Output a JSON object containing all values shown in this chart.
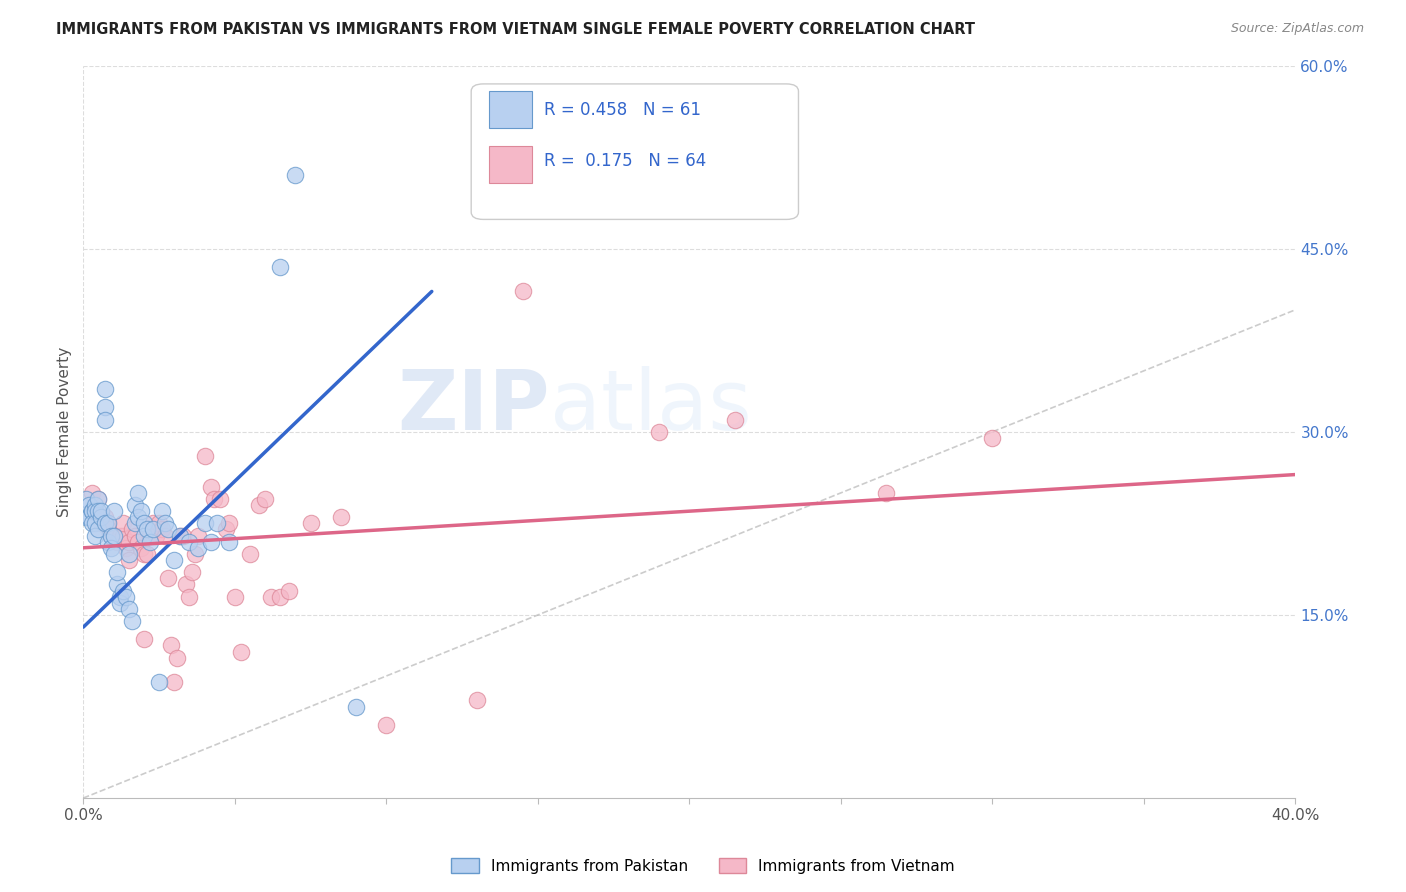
{
  "title": "IMMIGRANTS FROM PAKISTAN VS IMMIGRANTS FROM VIETNAM SINGLE FEMALE POVERTY CORRELATION CHART",
  "source": "Source: ZipAtlas.com",
  "ylabel": "Single Female Poverty",
  "x_min": 0.0,
  "x_max": 0.4,
  "y_min": 0.0,
  "y_max": 0.6,
  "y_ticks_right": [
    0.15,
    0.3,
    0.45,
    0.6
  ],
  "y_tick_labels_right": [
    "15.0%",
    "30.0%",
    "45.0%",
    "60.0%"
  ],
  "pakistan_color": "#b8d0f0",
  "pakistan_edge_color": "#6699cc",
  "vietnam_color": "#f5b8c8",
  "vietnam_edge_color": "#dd8899",
  "pakistan_line_color": "#3366cc",
  "vietnam_line_color": "#dd6688",
  "diagonal_color": "#aaaaaa",
  "R_pakistan": 0.458,
  "N_pakistan": 61,
  "R_vietnam": 0.175,
  "N_vietnam": 64,
  "legend_label_1": "Immigrants from Pakistan",
  "legend_label_2": "Immigrants from Vietnam",
  "watermark_zip": "ZIP",
  "watermark_atlas": "atlas",
  "grid_color": "#dddddd",
  "background_color": "#ffffff",
  "pakistan_points": [
    [
      0.001,
      0.245
    ],
    [
      0.001,
      0.23
    ],
    [
      0.002,
      0.24
    ],
    [
      0.002,
      0.23
    ],
    [
      0.003,
      0.235
    ],
    [
      0.003,
      0.235
    ],
    [
      0.003,
      0.225
    ],
    [
      0.004,
      0.24
    ],
    [
      0.004,
      0.235
    ],
    [
      0.004,
      0.225
    ],
    [
      0.004,
      0.215
    ],
    [
      0.005,
      0.245
    ],
    [
      0.005,
      0.235
    ],
    [
      0.005,
      0.22
    ],
    [
      0.006,
      0.23
    ],
    [
      0.006,
      0.235
    ],
    [
      0.007,
      0.32
    ],
    [
      0.007,
      0.31
    ],
    [
      0.007,
      0.225
    ],
    [
      0.007,
      0.335
    ],
    [
      0.008,
      0.225
    ],
    [
      0.008,
      0.21
    ],
    [
      0.009,
      0.215
    ],
    [
      0.009,
      0.205
    ],
    [
      0.01,
      0.235
    ],
    [
      0.01,
      0.215
    ],
    [
      0.01,
      0.2
    ],
    [
      0.011,
      0.175
    ],
    [
      0.011,
      0.185
    ],
    [
      0.012,
      0.165
    ],
    [
      0.012,
      0.16
    ],
    [
      0.013,
      0.17
    ],
    [
      0.014,
      0.165
    ],
    [
      0.015,
      0.155
    ],
    [
      0.015,
      0.2
    ],
    [
      0.016,
      0.145
    ],
    [
      0.017,
      0.24
    ],
    [
      0.017,
      0.225
    ],
    [
      0.018,
      0.25
    ],
    [
      0.018,
      0.23
    ],
    [
      0.019,
      0.235
    ],
    [
      0.02,
      0.225
    ],
    [
      0.02,
      0.215
    ],
    [
      0.021,
      0.22
    ],
    [
      0.022,
      0.21
    ],
    [
      0.023,
      0.22
    ],
    [
      0.025,
      0.095
    ],
    [
      0.026,
      0.235
    ],
    [
      0.027,
      0.225
    ],
    [
      0.028,
      0.22
    ],
    [
      0.03,
      0.195
    ],
    [
      0.032,
      0.215
    ],
    [
      0.035,
      0.21
    ],
    [
      0.038,
      0.205
    ],
    [
      0.04,
      0.225
    ],
    [
      0.042,
      0.21
    ],
    [
      0.044,
      0.225
    ],
    [
      0.048,
      0.21
    ],
    [
      0.065,
      0.435
    ],
    [
      0.07,
      0.51
    ],
    [
      0.09,
      0.075
    ]
  ],
  "vietnam_points": [
    [
      0.003,
      0.25
    ],
    [
      0.004,
      0.235
    ],
    [
      0.005,
      0.23
    ],
    [
      0.005,
      0.245
    ],
    [
      0.006,
      0.225
    ],
    [
      0.007,
      0.23
    ],
    [
      0.008,
      0.225
    ],
    [
      0.008,
      0.22
    ],
    [
      0.009,
      0.215
    ],
    [
      0.01,
      0.215
    ],
    [
      0.011,
      0.21
    ],
    [
      0.012,
      0.215
    ],
    [
      0.013,
      0.215
    ],
    [
      0.013,
      0.225
    ],
    [
      0.014,
      0.205
    ],
    [
      0.015,
      0.195
    ],
    [
      0.015,
      0.21
    ],
    [
      0.016,
      0.22
    ],
    [
      0.017,
      0.215
    ],
    [
      0.018,
      0.21
    ],
    [
      0.019,
      0.205
    ],
    [
      0.02,
      0.13
    ],
    [
      0.02,
      0.2
    ],
    [
      0.021,
      0.2
    ],
    [
      0.022,
      0.215
    ],
    [
      0.023,
      0.225
    ],
    [
      0.024,
      0.215
    ],
    [
      0.025,
      0.225
    ],
    [
      0.026,
      0.22
    ],
    [
      0.027,
      0.215
    ],
    [
      0.028,
      0.18
    ],
    [
      0.029,
      0.125
    ],
    [
      0.03,
      0.095
    ],
    [
      0.031,
      0.115
    ],
    [
      0.032,
      0.215
    ],
    [
      0.033,
      0.215
    ],
    [
      0.034,
      0.175
    ],
    [
      0.035,
      0.165
    ],
    [
      0.036,
      0.185
    ],
    [
      0.037,
      0.2
    ],
    [
      0.038,
      0.215
    ],
    [
      0.04,
      0.28
    ],
    [
      0.042,
      0.255
    ],
    [
      0.043,
      0.245
    ],
    [
      0.045,
      0.245
    ],
    [
      0.047,
      0.22
    ],
    [
      0.048,
      0.225
    ],
    [
      0.05,
      0.165
    ],
    [
      0.052,
      0.12
    ],
    [
      0.055,
      0.2
    ],
    [
      0.058,
      0.24
    ],
    [
      0.06,
      0.245
    ],
    [
      0.062,
      0.165
    ],
    [
      0.065,
      0.165
    ],
    [
      0.068,
      0.17
    ],
    [
      0.075,
      0.225
    ],
    [
      0.085,
      0.23
    ],
    [
      0.1,
      0.06
    ],
    [
      0.13,
      0.08
    ],
    [
      0.145,
      0.415
    ],
    [
      0.19,
      0.3
    ],
    [
      0.215,
      0.31
    ],
    [
      0.265,
      0.25
    ],
    [
      0.3,
      0.295
    ]
  ],
  "pak_line_x": [
    0.0,
    0.115
  ],
  "pak_line_y": [
    0.14,
    0.415
  ],
  "viet_line_x": [
    0.0,
    0.4
  ],
  "viet_line_y": [
    0.205,
    0.265
  ]
}
